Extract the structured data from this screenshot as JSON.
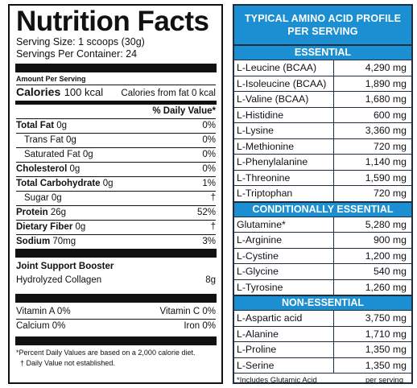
{
  "nutrition": {
    "title": "Nutrition Facts",
    "serving_size": "Serving Size: 1 scoops (30g)",
    "servings_per_container": "Servings Per Container: 24",
    "amount_per_serving": "Amount Per Serving",
    "calories_label": "Calories",
    "calories_value": "100 kcal",
    "calories_from_fat": "Calories from fat 0 kcal",
    "daily_value_header": "% Daily Value*",
    "rows": [
      {
        "label": "Total Fat",
        "amount": "0g",
        "dv": "0%",
        "bold": true
      },
      {
        "label": "Trans Fat",
        "amount": "0g",
        "dv": "0%",
        "bold": false
      },
      {
        "label": "Saturated Fat",
        "amount": "0g",
        "dv": "0%",
        "bold": false
      },
      {
        "label": "Cholesterol",
        "amount": "0g",
        "dv": "0%",
        "bold": true
      },
      {
        "label": "Total Carbohydrate",
        "amount": "0g",
        "dv": "1%",
        "bold": true
      },
      {
        "label": "Sugar",
        "amount": "0g",
        "dv": "†",
        "bold": false
      },
      {
        "label": "Protein",
        "amount": "26g",
        "dv": "52%",
        "bold": true
      },
      {
        "label": "Dietary Fiber",
        "amount": "0g",
        "dv": "†",
        "bold": true
      },
      {
        "label": "Sodium",
        "amount": "70mg",
        "dv": "3%",
        "bold": true
      }
    ],
    "joint_title": "Joint Support Booster",
    "joint_item": "Hydrolyzed Collagen",
    "joint_amount": "8g",
    "vitamin_a": "Vitamin A 0%",
    "vitamin_c": "Vitamin C 0%",
    "calcium": "Calcium 0%",
    "iron": "Iron 0%",
    "footnote1": "*Percent Daily Values are based on a 2,000 calorie diet.",
    "footnote2": "† Daily Value not established."
  },
  "amino": {
    "title_line1": "TYPICAL AMINO ACID PROFILE",
    "title_line2": "PER SERVING",
    "accent": "#1b8fd1",
    "sections": [
      {
        "name": "ESSENTIAL",
        "items": [
          {
            "name": "L-Leucine (BCAA)",
            "value": "4,290 mg"
          },
          {
            "name": "L-Isoleucine (BCAA)",
            "value": "1,890 mg"
          },
          {
            "name": "L-Valine (BCAA)",
            "value": "1,680 mg"
          },
          {
            "name": "L-Histidine",
            "value": "600 mg"
          },
          {
            "name": "L-Lysine",
            "value": "3,360 mg"
          },
          {
            "name": "L-Methionine",
            "value": "720 mg"
          },
          {
            "name": "L-Phenylalanine",
            "value": "1,140 mg"
          },
          {
            "name": "L-Threonine",
            "value": "1,590 mg"
          },
          {
            "name": "L-Triptophan",
            "value": "720 mg"
          }
        ]
      },
      {
        "name": "CONDITIONALLY ESSENTIAL",
        "items": [
          {
            "name": "Glutamine*",
            "value": "5,280 mg"
          },
          {
            "name": "L-Arginine",
            "value": "900 mg"
          },
          {
            "name": "L-Cystine",
            "value": "1,200 mg"
          },
          {
            "name": "L-Glycine",
            "value": "540 mg"
          },
          {
            "name": "L-Tyrosine",
            "value": "1,260 mg"
          }
        ]
      },
      {
        "name": "NON-ESSENTIAL",
        "items": [
          {
            "name": "L-Aspartic acid",
            "value": "3,750 mg"
          },
          {
            "name": "L-Alanine",
            "value": "1,710 mg"
          },
          {
            "name": "L-Proline",
            "value": "1,350 mg"
          },
          {
            "name": "L-Serine",
            "value": "1,350 mg"
          }
        ]
      }
    ],
    "footnote_left": "*Includes Glutamic Acid",
    "footnote_right": "per serving"
  }
}
